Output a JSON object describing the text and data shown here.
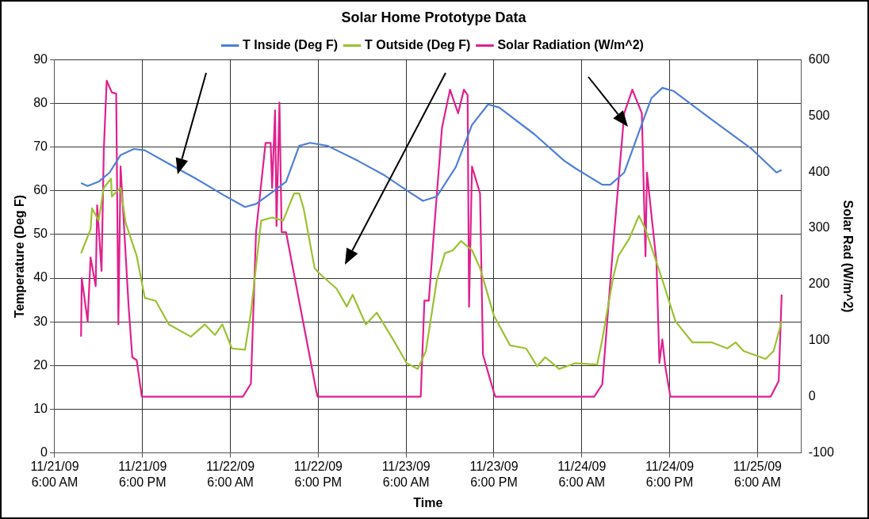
{
  "chart_data": {
    "type": "line",
    "title": "Solar Home Prototype Data",
    "xlabel": "Time",
    "ylabel": "Temperature (Deg F)",
    "y2label": "Solar Rad (W/m^2)",
    "xlim": [
      "--11-21T06:00",
      "--11-25T12:00"
    ],
    "xticks": [
      {
        "value": "--11-21T06:00",
        "label": "11/21/09 6:00 AM"
      },
      {
        "value": "--11-21T18:00",
        "label": "11/21/09 6:00 PM"
      },
      {
        "value": "--11-22T06:00",
        "label": "11/22/09 6:00 AM"
      },
      {
        "value": "--11-22T18:00",
        "label": "11/22/09 6:00 PM"
      },
      {
        "value": "--11-23T06:00",
        "label": "11/23/09 6:00 AM"
      },
      {
        "value": "--11-23T18:00",
        "label": "11/23/09 6:00 PM"
      },
      {
        "value": "--11-24T06:00",
        "label": "11/24/09 6:00 AM"
      },
      {
        "value": "--11-24T18:00",
        "label": "11/24/09 6:00 PM"
      },
      {
        "value": "--11-25T06:00",
        "label": "11/25/09 6:00 AM"
      }
    ],
    "ylim": [
      0,
      90
    ],
    "yticks": [
      0,
      10,
      20,
      30,
      40,
      50,
      60,
      70,
      80,
      90
    ],
    "y2lim": [
      -100,
      600
    ],
    "y2ticks": [
      -100,
      0,
      100,
      200,
      300,
      400,
      500,
      600
    ],
    "grid": true,
    "legend": "top",
    "marker": "none",
    "line_style": "solid",
    "series": [
      {
        "name": "T Inside (Deg F)",
        "color": "#4f7fd6",
        "x": [
          "--11-21T09:36",
          "--11-21T10:30",
          "--11-21T12:00",
          "--11-21T13:30",
          "--11-21T15:00",
          "--11-21T16:48",
          "--11-21T18:18",
          "--11-21T21:36",
          "--11-22T01:18",
          "--11-22T05:06",
          "--11-22T08:00",
          "--11-22T09:30",
          "--11-22T11:42",
          "--11-22T13:36",
          "--11-22T15:24",
          "--11-22T16:54",
          "--11-22T19:18",
          "--11-22T23:24",
          "--11-23T03:06",
          "--11-23T06:06",
          "--11-23T08:18",
          "--11-23T10:12",
          "--11-23T12:48",
          "--11-23T15:00",
          "--11-23T17:12",
          "--11-23T18:42",
          "--11-23T23:30",
          "--11-24T03:36",
          "--11-24T05:06",
          "--11-24T08:48",
          "--11-24T09:54",
          "--11-24T11:48",
          "--11-24T14:00",
          "--11-24T15:30",
          "--11-24T17:00",
          "--11-24T18:30",
          "--11-24T23:42",
          "--11-25T05:12",
          "--11-25T08:36",
          "--11-25T09:18"
        ],
        "values": [
          61.8,
          61.1,
          62.1,
          64.2,
          68.2,
          69.6,
          69.3,
          66.2,
          62.8,
          59.0,
          56.3,
          57.0,
          59.7,
          62.1,
          70.3,
          71.0,
          70.3,
          66.9,
          63.5,
          60.1,
          57.7,
          58.7,
          65.5,
          75.1,
          79.8,
          79.1,
          73.0,
          66.9,
          65.2,
          61.4,
          61.4,
          64.2,
          74.4,
          81.2,
          83.6,
          82.9,
          76.4,
          69.6,
          64.2,
          64.8
        ]
      },
      {
        "name": "T Outside (Deg F)",
        "color": "#9bc132",
        "x": [
          "--11-21T09:36",
          "--11-21T10:54",
          "--11-21T11:06",
          "--11-21T12:00",
          "--11-21T12:42",
          "--11-21T13:42",
          "--11-21T13:48",
          "--11-21T15:00",
          "--11-21T15:42",
          "--11-21T17:12",
          "--11-21T18:18",
          "--11-21T19:48",
          "--11-21T21:36",
          "--11-22T00:36",
          "--11-22T02:30",
          "--11-22T03:54",
          "--11-22T04:54",
          "--11-22T06:12",
          "--11-22T08:00",
          "--11-22T08:48",
          "--11-22T10:12",
          "--11-22T11:42",
          "--11-22T13:12",
          "--11-22T14:42",
          "--11-22T15:24",
          "--11-22T16:00",
          "--11-22T17:30",
          "--11-22T18:12",
          "--11-22T20:30",
          "--11-22T21:54",
          "--11-22T22:42",
          "--11-23T00:30",
          "--11-23T02:00",
          "--11-23T04:12",
          "--11-23T06:06",
          "--11-23T07:36",
          "--11-23T08:42",
          "--11-23T10:12",
          "--11-23T11:18",
          "--11-23T12:24",
          "--11-23T13:30",
          "--11-23T15:00",
          "--11-23T16:06",
          "--11-23T18:00",
          "--11-23T20:12",
          "--11-23T22:24",
          "--11-23T23:54",
          "--11-24T01:00",
          "--11-24T02:54",
          "--11-24T05:06",
          "--11-24T08:06",
          "--11-24T08:48",
          "--11-24T10:18",
          "--11-24T11:00",
          "--11-24T12:30",
          "--11-24T13:48",
          "--11-24T14:42",
          "--11-24T17:00",
          "--11-24T18:48",
          "--11-24T21:06",
          "--11-24T23:42",
          "--11-25T01:54",
          "--11-25T03:00",
          "--11-25T04:06",
          "--11-25T07:06",
          "--11-25T08:12",
          "--11-25T09:18"
        ],
        "values": [
          45.7,
          51.2,
          56.0,
          53.2,
          60.7,
          62.8,
          58.7,
          60.7,
          52.6,
          45.1,
          35.5,
          34.8,
          29.4,
          26.6,
          29.4,
          27.0,
          29.4,
          23.9,
          23.6,
          32.1,
          53.2,
          53.9,
          53.2,
          59.4,
          59.4,
          56.0,
          42.3,
          41.0,
          37.6,
          33.5,
          36.2,
          29.4,
          32.1,
          26.0,
          20.5,
          19.2,
          23.3,
          39.6,
          45.7,
          46.4,
          48.5,
          46.4,
          42.3,
          31.4,
          24.6,
          23.9,
          19.8,
          21.9,
          19.2,
          20.5,
          20.2,
          26.0,
          40.3,
          45.1,
          49.1,
          54.3,
          51.2,
          39.6,
          30.1,
          25.3,
          25.3,
          23.9,
          25.3,
          23.3,
          21.5,
          23.3,
          30.1
        ]
      },
      {
        "name": "Solar Radiation (W/m^2)",
        "color": "#e0208f",
        "axis": "y2",
        "x": [
          "--11-21T09:36",
          "--11-21T09:42",
          "--11-21T10:30",
          "--11-21T10:54",
          "--11-21T11:36",
          "--11-21T11:48",
          "--11-21T12:24",
          "--11-21T12:42",
          "--11-21T13:06",
          "--11-21T13:48",
          "--11-21T14:24",
          "--11-21T14:42",
          "--11-21T15:00",
          "--11-21T16:06",
          "--11-21T16:36",
          "--11-21T17:12",
          "--11-21T17:54",
          "--11-22T07:42",
          "--11-22T08:48",
          "--11-22T09:30",
          "--11-22T10:48",
          "--11-22T11:30",
          "--11-22T11:42",
          "--11-22T12:06",
          "--11-22T12:18",
          "--11-22T12:42",
          "--11-22T13:00",
          "--11-22T13:36",
          "--11-22T17:42",
          "--11-22T17:54",
          "--11-23T08:00",
          "--11-23T08:30",
          "--11-23T09:06",
          "--11-23T09:48",
          "--11-23T10:54",
          "--11-23T12:00",
          "--11-23T13:06",
          "--11-23T13:54",
          "--11-23T14:24",
          "--11-23T14:36",
          "--11-23T15:00",
          "--11-23T16:06",
          "--11-23T16:30",
          "--11-23T18:00",
          "--11-23T18:12",
          "--11-24T07:42",
          "--11-24T08:48",
          "--11-24T10:18",
          "--11-24T11:48",
          "--11-24T12:54",
          "--11-24T14:12",
          "--11-24T14:42",
          "--11-24T14:54",
          "--11-24T16:12",
          "--11-24T16:36",
          "--11-24T17:00",
          "--11-24T17:24",
          "--11-24T18:06",
          "--11-25T07:48",
          "--11-25T08:54",
          "--11-25T09:18"
        ],
        "values": [
          107,
          211,
          134,
          248,
          197,
          341,
          224,
          436,
          563,
          542,
          540,
          129,
          410,
          160,
          70,
          65,
          0,
          0,
          23,
          293,
          452,
          452,
          372,
          510,
          304,
          524,
          293,
          293,
          12,
          0,
          0,
          171,
          171,
          293,
          479,
          547,
          505,
          547,
          537,
          160,
          410,
          362,
          75,
          7,
          0,
          0,
          22,
          272,
          505,
          547,
          505,
          250,
          399,
          240,
          60,
          102,
          54,
          0,
          0,
          28,
          182
        ]
      }
    ]
  }
}
